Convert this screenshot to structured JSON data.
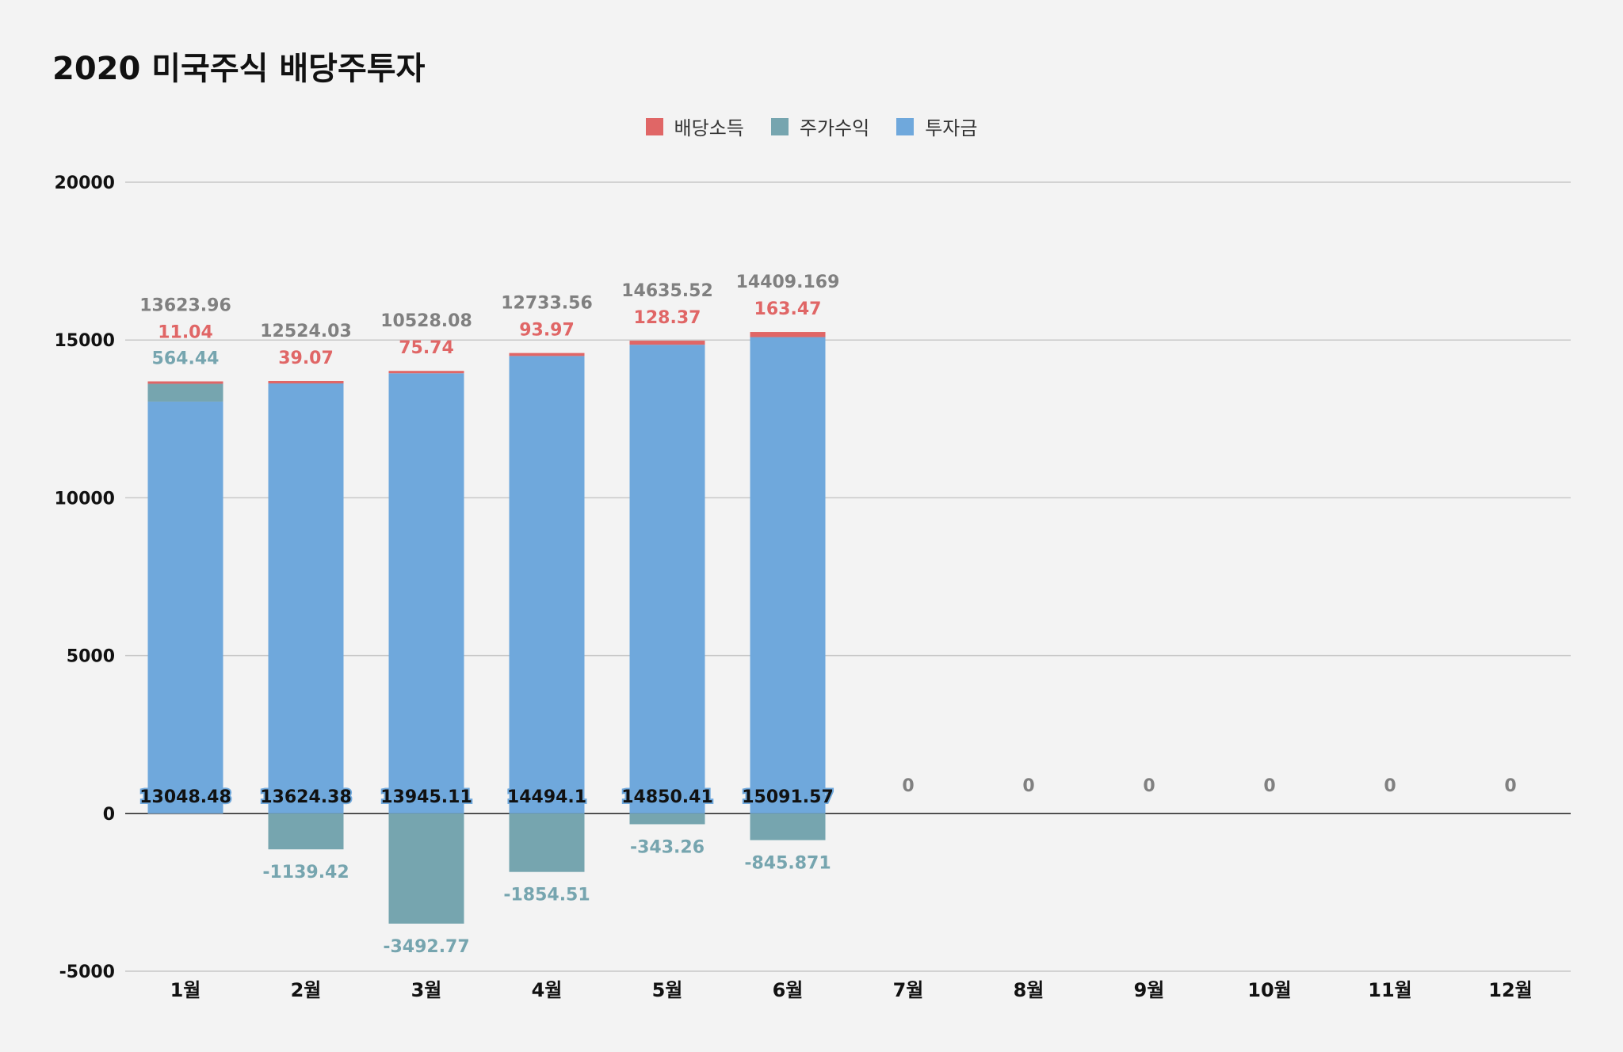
{
  "chart_data": {
    "type": "bar",
    "stacked": true,
    "title": "2020 미국주식 배당주투자",
    "categories": [
      "1월",
      "2월",
      "3월",
      "4월",
      "5월",
      "6월",
      "7월",
      "8월",
      "9월",
      "10월",
      "11월",
      "12월"
    ],
    "series": [
      {
        "name": "배당소득",
        "color": "#e06666",
        "values": [
          11.04,
          39.07,
          75.74,
          93.97,
          128.37,
          163.47,
          null,
          null,
          null,
          null,
          null,
          null
        ]
      },
      {
        "name": "주가수익",
        "color": "#76a5af",
        "values": [
          564.44,
          -1139.42,
          -3492.77,
          -1854.51,
          -343.26,
          -845.871,
          null,
          null,
          null,
          null,
          null,
          null
        ]
      },
      {
        "name": "투자금",
        "color": "#6fa8dc",
        "values": [
          13048.48,
          13624.38,
          13945.11,
          14494.1,
          14850.41,
          15091.57,
          null,
          null,
          null,
          null,
          null,
          null
        ]
      }
    ],
    "totals": [
      13623.96,
      12524.03,
      10528.08,
      12733.56,
      14635.52,
      14409.169,
      0,
      0,
      0,
      0,
      0,
      0
    ],
    "ylim": [
      -5000,
      20000
    ],
    "yticks": [
      -5000,
      0,
      5000,
      10000,
      15000,
      20000
    ],
    "grid": true,
    "legend_position": "top-center",
    "total_label_color": "#808080"
  }
}
